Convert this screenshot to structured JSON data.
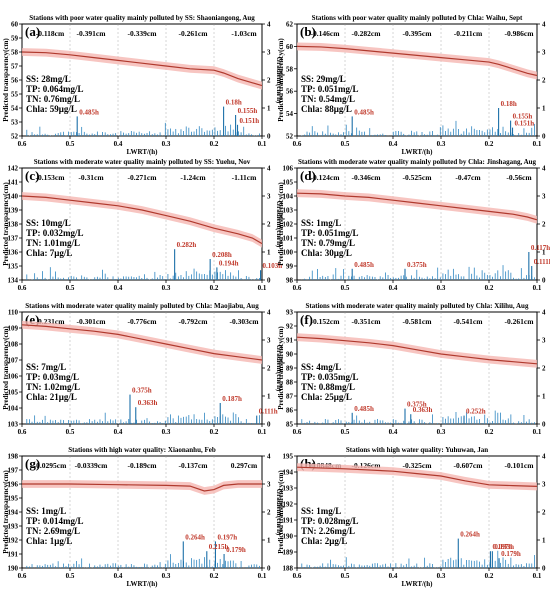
{
  "chart_data": [
    {
      "type": "line",
      "label": "(a)",
      "title": "Stations with poor water quality mainly polluted by SS: Shaoniangong, Aug",
      "xlabel": "LWRT/(h)",
      "ylabel": "Predicted transparency(cm)",
      "y2label": "Gradient(cm/h)",
      "xlim": [
        0.6,
        0.1
      ],
      "ylim": [
        52,
        60
      ],
      "y2lim": [
        0,
        4
      ],
      "x_ticks": [
        "0.6",
        "0.5",
        "0.4",
        "0.3",
        "0.2",
        "0.1"
      ],
      "y_ticks": [
        "52",
        "53",
        "54",
        "55",
        "56",
        "57",
        "58",
        "59",
        "60"
      ],
      "y2_ticks": [
        "0",
        "1",
        "2",
        "3",
        "4"
      ],
      "segment_changes": [
        "-0.118cm",
        "-0.391cm",
        "-0.339cm",
        "-0.261cm",
        "-1.03cm"
      ],
      "water_quality": [
        "SS: 28mg/L",
        "TP: 0.064mg/L",
        "TN: 0.76mg/L",
        "Chla: 59μg/L"
      ],
      "annotations": [
        {
          "text": "0.485h",
          "x": 0.485,
          "y2": 0.7
        },
        {
          "text": "0.18h",
          "x": 0.18,
          "y2": 1.05
        },
        {
          "text": "0.155h",
          "x": 0.155,
          "y2": 0.75
        },
        {
          "text": "0.151h",
          "x": 0.151,
          "y2": 0.4
        }
      ],
      "curve": [
        [
          0.6,
          58.0
        ],
        [
          0.55,
          57.95
        ],
        [
          0.5,
          57.8
        ],
        [
          0.45,
          57.6
        ],
        [
          0.4,
          57.4
        ],
        [
          0.35,
          57.2
        ],
        [
          0.3,
          57.0
        ],
        [
          0.25,
          56.8
        ],
        [
          0.2,
          56.7
        ],
        [
          0.18,
          56.5
        ],
        [
          0.15,
          56.1
        ],
        [
          0.12,
          55.8
        ],
        [
          0.1,
          55.6
        ]
      ],
      "gradient_peaks": [
        [
          0.485,
          0.7
        ],
        [
          0.18,
          1.05
        ],
        [
          0.155,
          0.75
        ],
        [
          0.151,
          0.4
        ]
      ]
    },
    {
      "type": "line",
      "label": "(b)",
      "title": "Stations with poor water quality mainly polluted by Chla: Waihu, Sept",
      "xlabel": "LWRT/(h)",
      "ylabel": "Predicted transparency(cm)",
      "y2label": "Gradient(cm/h)",
      "xlim": [
        0.6,
        0.1
      ],
      "ylim": [
        52,
        62
      ],
      "y2lim": [
        0,
        4
      ],
      "x_ticks": [
        "0.6",
        "0.5",
        "0.4",
        "0.3",
        "0.2",
        "0.1"
      ],
      "y_ticks": [
        "52",
        "54",
        "56",
        "58",
        "60",
        "62"
      ],
      "y2_ticks": [
        "0",
        "1",
        "2",
        "3",
        "4"
      ],
      "segment_changes": [
        "-0.146cm",
        "-0.282cm",
        "-0.395cm",
        "-0.211cm",
        "-0.986cm"
      ],
      "water_quality": [
        "SS: 29mg/L",
        "TP: 0.051mg/L",
        "TN: 0.54mg/L",
        "Chla: 88μg/L"
      ],
      "annotations": [
        {
          "text": "0.485h",
          "x": 0.485,
          "y2": 0.7
        },
        {
          "text": "0.18h",
          "x": 0.18,
          "y2": 1.0
        },
        {
          "text": "0.155h",
          "x": 0.155,
          "y2": 0.55
        },
        {
          "text": "0.151h",
          "x": 0.151,
          "y2": 0.3
        }
      ],
      "curve": [
        [
          0.6,
          60.0
        ],
        [
          0.55,
          59.95
        ],
        [
          0.5,
          59.8
        ],
        [
          0.45,
          59.6
        ],
        [
          0.4,
          59.4
        ],
        [
          0.35,
          59.2
        ],
        [
          0.3,
          59.0
        ],
        [
          0.25,
          58.8
        ],
        [
          0.2,
          58.6
        ],
        [
          0.18,
          58.4
        ],
        [
          0.15,
          58.0
        ],
        [
          0.12,
          57.6
        ],
        [
          0.1,
          57.4
        ]
      ],
      "gradient_peaks": [
        [
          0.485,
          0.7
        ],
        [
          0.18,
          1.0
        ],
        [
          0.155,
          0.55
        ],
        [
          0.151,
          0.3
        ]
      ]
    },
    {
      "type": "line",
      "label": "(c)",
      "title": "Stations with moderate water quality mainly polluted by SS: Yuehu, Nov",
      "xlabel": "",
      "ylabel": "Predicted transparency(cm)",
      "y2label": "Gradient(cm/h)",
      "xlim": [
        0.6,
        0.1
      ],
      "ylim": [
        134,
        142
      ],
      "y2lim": [
        0,
        4
      ],
      "x_ticks": [
        "0.6",
        "0.5",
        "0.4",
        "0.3",
        "0.2",
        "0.1"
      ],
      "y_ticks": [
        "134",
        "135",
        "136",
        "137",
        "138",
        "139",
        "140",
        "141",
        "142"
      ],
      "y2_ticks": [
        "0",
        "1",
        "2",
        "3",
        "4"
      ],
      "segment_changes": [
        "-0.153cm",
        "-0.31cm",
        "-0.271cm",
        "-1.24cm",
        "-1.11cm"
      ],
      "water_quality": [
        "SS: 10mg/L",
        "TP: 0.032mg/L",
        "TN: 1.01mg/L",
        "Chla: 7μg/L"
      ],
      "annotations": [
        {
          "text": "0.282h",
          "x": 0.282,
          "y2": 1.1
        },
        {
          "text": "0.208h",
          "x": 0.208,
          "y2": 0.75
        },
        {
          "text": "0.194h",
          "x": 0.194,
          "y2": 0.45
        },
        {
          "text": "0.103h",
          "x": 0.103,
          "y2": 0.35
        }
      ],
      "curve": [
        [
          0.6,
          140.0
        ],
        [
          0.55,
          139.9
        ],
        [
          0.5,
          139.7
        ],
        [
          0.45,
          139.5
        ],
        [
          0.4,
          139.3
        ],
        [
          0.35,
          139.0
        ],
        [
          0.3,
          138.6
        ],
        [
          0.25,
          138.2
        ],
        [
          0.2,
          137.7
        ],
        [
          0.15,
          137.3
        ],
        [
          0.12,
          137.0
        ],
        [
          0.1,
          136.6
        ]
      ],
      "gradient_peaks": [
        [
          0.282,
          1.1
        ],
        [
          0.208,
          0.75
        ],
        [
          0.194,
          0.45
        ],
        [
          0.103,
          0.35
        ]
      ]
    },
    {
      "type": "line",
      "label": "(d)",
      "title": "Stations with moderate water quality mainly polluted by Chla: Jinshagang, Aug",
      "xlabel": "",
      "ylabel": "Predicted transparency(cm)",
      "y2label": "Gradient(cm/h)",
      "xlim": [
        0.6,
        0.1
      ],
      "ylim": [
        98,
        106
      ],
      "y2lim": [
        0,
        4
      ],
      "x_ticks": [
        "0.6",
        "0.5",
        "0.4",
        "0.3",
        "0.2",
        "0.1"
      ],
      "y_ticks": [
        "98",
        "99",
        "100",
        "101",
        "102",
        "103",
        "104",
        "105",
        "106"
      ],
      "y2_ticks": [
        "0",
        "1",
        "2",
        "3",
        "4"
      ],
      "segment_changes": [
        "-0.124cm",
        "-0.346cm",
        "-0.525cm",
        "-0.47cm",
        "-0.56cm"
      ],
      "water_quality": [
        "SS: 1mg/L",
        "TP: 0.051mg/L",
        "TN: 0.79mg/L",
        "Chla: 30μg/L"
      ],
      "annotations": [
        {
          "text": "0.485h",
          "x": 0.485,
          "y2": 0.4
        },
        {
          "text": "0.375h",
          "x": 0.375,
          "y2": 0.4
        },
        {
          "text": "0.117h",
          "x": 0.117,
          "y2": 1.0
        },
        {
          "text": "0.111h",
          "x": 0.111,
          "y2": 0.5
        }
      ],
      "curve": [
        [
          0.6,
          104.2
        ],
        [
          0.55,
          104.15
        ],
        [
          0.5,
          104.0
        ],
        [
          0.45,
          103.9
        ],
        [
          0.4,
          103.7
        ],
        [
          0.35,
          103.5
        ],
        [
          0.3,
          103.3
        ],
        [
          0.25,
          103.1
        ],
        [
          0.2,
          102.9
        ],
        [
          0.15,
          102.7
        ],
        [
          0.12,
          102.5
        ],
        [
          0.1,
          102.3
        ]
      ],
      "gradient_peaks": [
        [
          0.485,
          0.4
        ],
        [
          0.375,
          0.4
        ],
        [
          0.117,
          1.0
        ],
        [
          0.111,
          0.5
        ]
      ]
    },
    {
      "type": "line",
      "label": "(e)",
      "title": "Stations with moderate water quality mainly polluted by Chla: Maojiabu, Aug",
      "xlabel": "",
      "ylabel": "Predicted transparency(cm)",
      "y2label": "Gradient(cm/h)",
      "xlim": [
        0.6,
        0.1
      ],
      "ylim": [
        103,
        110
      ],
      "y2lim": [
        0,
        4
      ],
      "x_ticks": [
        "0.6",
        "0.5",
        "0.4",
        "0.3",
        "0.2",
        "0.1"
      ],
      "y_ticks": [
        "103",
        "104",
        "105",
        "106",
        "107",
        "108",
        "109",
        "110"
      ],
      "y2_ticks": [
        "0",
        "1",
        "2",
        "3",
        "4"
      ],
      "segment_changes": [
        "-0.231cm",
        "-0.301cm",
        "-0.776cm",
        "-0.792cm",
        "-0.303cm"
      ],
      "water_quality": [
        "SS: 7mg/L",
        "TP: 0.03mg/L",
        "TN: 1.02mg/L",
        "Chla: 21μg/L"
      ],
      "annotations": [
        {
          "text": "0.375h",
          "x": 0.375,
          "y2": 1.05
        },
        {
          "text": "0.363h",
          "x": 0.363,
          "y2": 0.6
        },
        {
          "text": "0.187h",
          "x": 0.187,
          "y2": 0.75
        },
        {
          "text": "0.111h",
          "x": 0.111,
          "y2": 0.3
        }
      ],
      "curve": [
        [
          0.6,
          109.2
        ],
        [
          0.55,
          109.1
        ],
        [
          0.5,
          108.95
        ],
        [
          0.45,
          108.8
        ],
        [
          0.4,
          108.6
        ],
        [
          0.35,
          108.3
        ],
        [
          0.3,
          108.0
        ],
        [
          0.25,
          107.7
        ],
        [
          0.2,
          107.4
        ],
        [
          0.15,
          107.2
        ],
        [
          0.1,
          107.0
        ]
      ],
      "gradient_peaks": [
        [
          0.375,
          1.05
        ],
        [
          0.363,
          0.6
        ],
        [
          0.187,
          0.75
        ],
        [
          0.111,
          0.3
        ]
      ]
    },
    {
      "type": "line",
      "label": "(f)",
      "title": "Stations with moderate water quality mainly polluted by Chla: Xilihu, Aug",
      "xlabel": "",
      "ylabel": "Predicted transparency(cm)",
      "y2label": "Gradient(cm/h)",
      "xlim": [
        0.6,
        0.1
      ],
      "ylim": [
        85,
        93
      ],
      "y2lim": [
        0,
        4
      ],
      "x_ticks": [
        "0.6",
        "0.5",
        "0.4",
        "0.3",
        "0.2",
        "0.1"
      ],
      "y_ticks": [
        "85",
        "86",
        "87",
        "88",
        "89",
        "90",
        "91",
        "92",
        "93"
      ],
      "y2_ticks": [
        "0",
        "1",
        "2",
        "3",
        "4"
      ],
      "segment_changes": [
        "-0.152cm",
        "-0.351cm",
        "-0.581cm",
        "-0.541cm",
        "-0.261cm"
      ],
      "water_quality": [
        "SS: 4mg/L",
        "TP: 0.035mg/L",
        "TN: 0.88mg/L",
        "Chla: 25μg/L"
      ],
      "annotations": [
        {
          "text": "0.485h",
          "x": 0.485,
          "y2": 0.4
        },
        {
          "text": "0.375h",
          "x": 0.375,
          "y2": 0.55
        },
        {
          "text": "0.363h",
          "x": 0.363,
          "y2": 0.35
        },
        {
          "text": "0.252h",
          "x": 0.252,
          "y2": 0.3
        }
      ],
      "curve": [
        [
          0.6,
          91.2
        ],
        [
          0.55,
          91.1
        ],
        [
          0.5,
          90.95
        ],
        [
          0.45,
          90.8
        ],
        [
          0.4,
          90.6
        ],
        [
          0.35,
          90.3
        ],
        [
          0.3,
          90.0
        ],
        [
          0.25,
          89.8
        ],
        [
          0.2,
          89.6
        ],
        [
          0.15,
          89.45
        ],
        [
          0.1,
          89.3
        ]
      ],
      "gradient_peaks": [
        [
          0.485,
          0.4
        ],
        [
          0.375,
          0.55
        ],
        [
          0.363,
          0.35
        ],
        [
          0.252,
          0.3
        ]
      ]
    },
    {
      "type": "line",
      "label": "(g)",
      "title": "Stations with high water quality: Xiaonanhu, Feb",
      "xlabel": "LWRT/(h)",
      "ylabel": "Predicted transparency(cm)",
      "y2label": "Gradient(cm/h)",
      "xlim": [
        0.6,
        0.1
      ],
      "ylim": [
        190,
        198
      ],
      "y2lim": [
        0,
        4
      ],
      "x_ticks": [
        "0.6",
        "0.5",
        "0.4",
        "0.3",
        "0.2",
        "0.1"
      ],
      "y_ticks": [
        "190",
        "191",
        "192",
        "193",
        "194",
        "195",
        "196",
        "197",
        "198"
      ],
      "y2_ticks": [
        "0",
        "1",
        "2",
        "3",
        "4"
      ],
      "segment_changes": [
        "-0.0295cm",
        "-0.0339cm",
        "-0.189cm",
        "-0.137cm",
        "0.297cm"
      ],
      "water_quality": [
        "SS: 1mg/L",
        "TP: 0.014mg/L",
        "TN: 2.69mg/L",
        "Chla: 1μg/L"
      ],
      "annotations": [
        {
          "text": "0.264h",
          "x": 0.264,
          "y2": 0.95
        },
        {
          "text": "0.215h",
          "x": 0.215,
          "y2": 0.6
        },
        {
          "text": "0.197h",
          "x": 0.197,
          "y2": 0.95
        },
        {
          "text": "0.179h",
          "x": 0.179,
          "y2": 0.5
        }
      ],
      "curve": [
        [
          0.6,
          196.0
        ],
        [
          0.5,
          196.0
        ],
        [
          0.4,
          195.95
        ],
        [
          0.3,
          195.9
        ],
        [
          0.25,
          195.85
        ],
        [
          0.22,
          195.5
        ],
        [
          0.2,
          195.6
        ],
        [
          0.18,
          195.9
        ],
        [
          0.15,
          196.0
        ],
        [
          0.1,
          196.0
        ]
      ],
      "gradient_peaks": [
        [
          0.264,
          0.95
        ],
        [
          0.215,
          0.6
        ],
        [
          0.197,
          0.95
        ],
        [
          0.179,
          0.5
        ]
      ]
    },
    {
      "type": "line",
      "label": "(h)",
      "title": "Stations with high water quality: Yuhuwan, Jan",
      "xlabel": "LWRT/(h)",
      "ylabel": "Predicted transparency(cm)",
      "y2label": "Gradient(cm/h)",
      "xlim": [
        0.6,
        0.1
      ],
      "ylim": [
        188,
        195
      ],
      "y2lim": [
        0,
        4
      ],
      "x_ticks": [
        "0.6",
        "0.5",
        "0.4",
        "0.3",
        "0.2",
        "0.1"
      ],
      "y_ticks": [
        "188",
        "189",
        "190",
        "191",
        "192",
        "193",
        "194",
        "195"
      ],
      "y2_ticks": [
        "0",
        "1",
        "2",
        "3",
        "4"
      ],
      "segment_changes": [
        "-0.0848cm",
        "-0.126cm",
        "-0.325cm",
        "-0.607cm",
        "-0.101cm"
      ],
      "water_quality": [
        "SS: 1mg/L",
        "TP: 0.028mg/L",
        "TN: 2.26mg/L",
        "Chla: 2μg/L"
      ],
      "annotations": [
        {
          "text": "0.264h",
          "x": 0.264,
          "y2": 1.05
        },
        {
          "text": "0.197h",
          "x": 0.197,
          "y2": 0.6
        },
        {
          "text": "0.193h",
          "x": 0.193,
          "y2": 0.6
        },
        {
          "text": "0.179h",
          "x": 0.179,
          "y2": 0.35
        }
      ],
      "curve": [
        [
          0.6,
          194.3
        ],
        [
          0.5,
          194.2
        ],
        [
          0.4,
          194.05
        ],
        [
          0.35,
          193.9
        ],
        [
          0.3,
          193.75
        ],
        [
          0.25,
          193.45
        ],
        [
          0.2,
          193.2
        ],
        [
          0.15,
          193.15
        ],
        [
          0.1,
          193.1
        ]
      ],
      "gradient_peaks": [
        [
          0.264,
          1.05
        ],
        [
          0.197,
          0.6
        ],
        [
          0.193,
          0.6
        ],
        [
          0.179,
          0.35
        ]
      ]
    }
  ]
}
